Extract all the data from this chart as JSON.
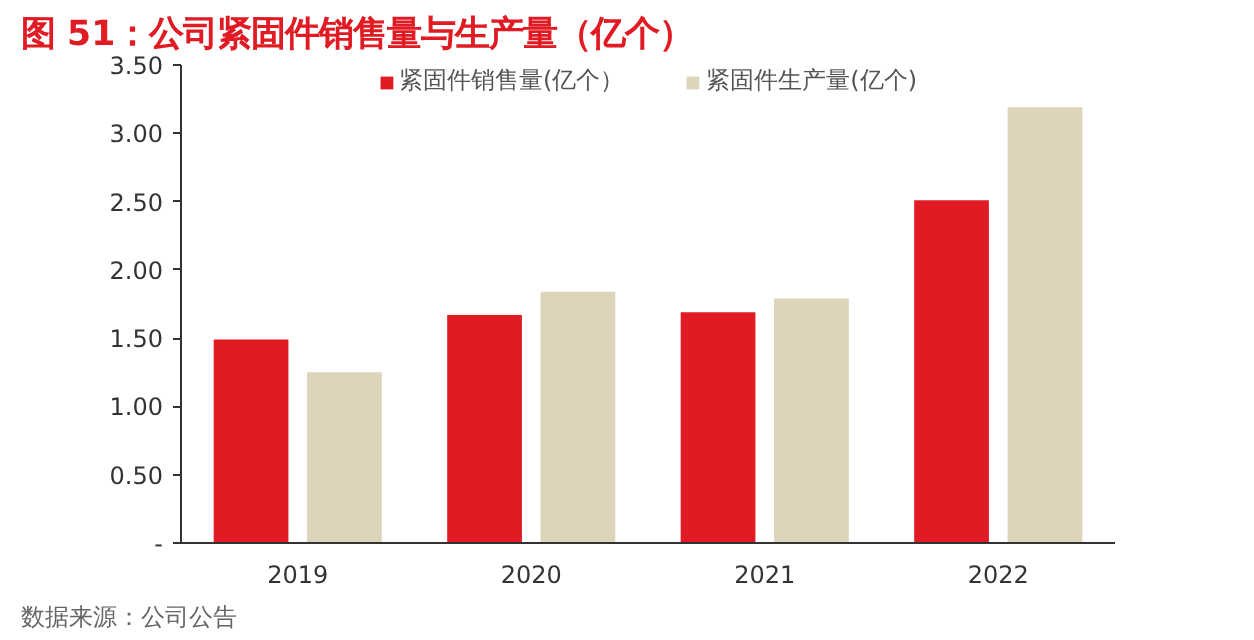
{
  "chart_data": {
    "type": "bar",
    "title": "图 51：公司紧固件销售量与生产量（亿个）",
    "categories": [
      "2019",
      "2020",
      "2021",
      "2022"
    ],
    "series": [
      {
        "name": "紧固件销售量(亿个）",
        "color": "#e01b23",
        "values": [
          1.49,
          1.67,
          1.69,
          2.51
        ]
      },
      {
        "name": "紧固件生产量(亿个)",
        "color": "#ddd4bc",
        "values": [
          1.25,
          1.84,
          1.79,
          3.19
        ]
      }
    ],
    "ylim": [
      0,
      3.5
    ],
    "yticks": [
      {
        "value": 0,
        "label": "-"
      },
      {
        "value": 0.5,
        "label": "0.50"
      },
      {
        "value": 1,
        "label": "1.00"
      },
      {
        "value": 1.5,
        "label": "1.50"
      },
      {
        "value": 2,
        "label": "2.00"
      },
      {
        "value": 2.5,
        "label": "2.50"
      },
      {
        "value": 3,
        "label": "3.00"
      },
      {
        "value": 3.5,
        "label": "3.50"
      }
    ],
    "grid": false,
    "legend": "top",
    "annotations": [
      "数据来源：公司公告"
    ]
  }
}
